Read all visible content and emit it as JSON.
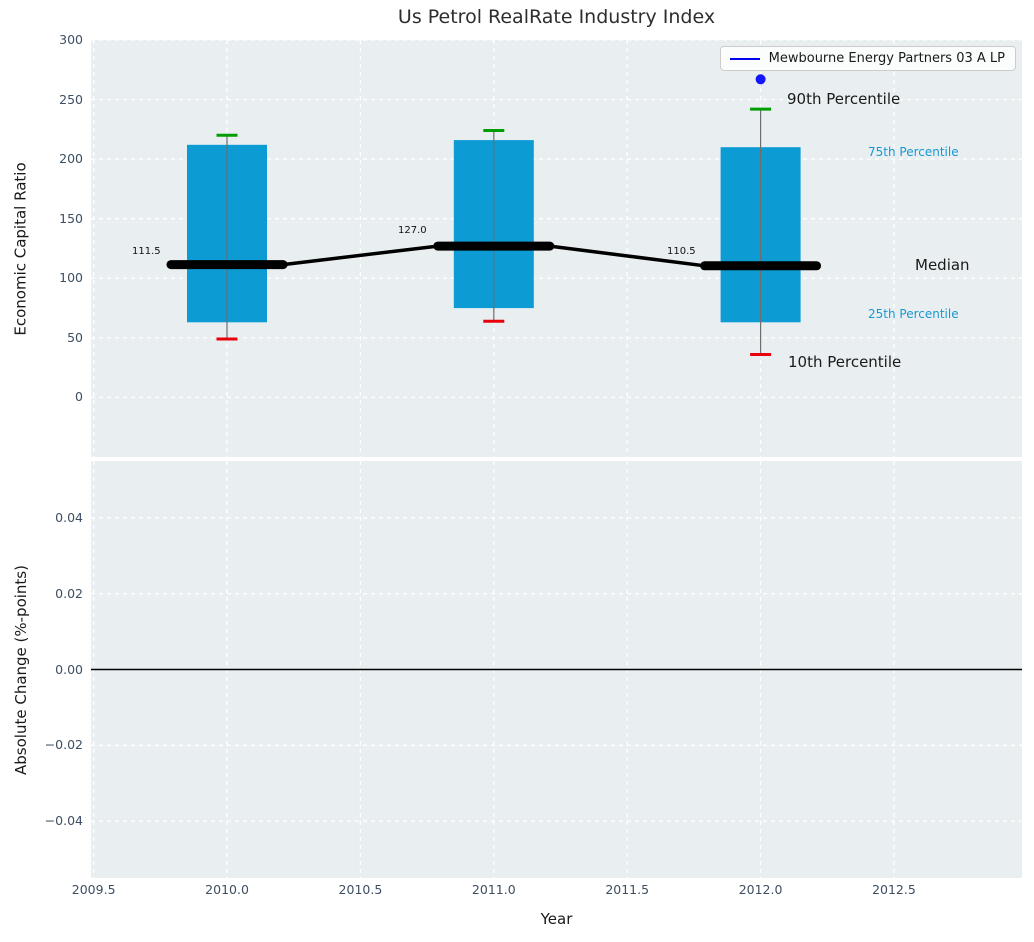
{
  "title": "Us Petrol RealRate Industry Index",
  "legend": {
    "label": "Mewbourne Energy Partners 03 A LP",
    "line_color": "#0000f0"
  },
  "colors": {
    "figure_bg": "#ffffff",
    "plot_bg": "#e9eef1",
    "grid": "#ffffff",
    "box_fill": "#0d9bd4",
    "whisker": "#6e6e6e",
    "cap_90th": "#009d00",
    "cap_10th": "#e8000b",
    "median_line": "#000000",
    "marker": "#1414ff",
    "zero_line": "#000000",
    "tick_label": "#3d4f63",
    "text": "#1a1a1a",
    "percentile_label_blue": "#179ad2"
  },
  "chart_data": {
    "type": "boxplot-timeseries",
    "title": "Us Petrol RealRate Industry Index",
    "xlabel": "Year",
    "xlim": [
      2009.49,
      2012.98
    ],
    "xticks": [
      2009.5,
      2010.0,
      2010.5,
      2011.0,
      2011.5,
      2012.0,
      2012.5
    ],
    "grid": "white dashed on gray background",
    "legend_position": "upper right",
    "top": {
      "ylabel": "Economic Capital Ratio",
      "ylim": [
        -50,
        300
      ],
      "yticks": [
        0,
        50,
        100,
        150,
        200,
        250,
        300
      ],
      "boxes": [
        {
          "year": 2010,
          "p10": 49,
          "p25": 63,
          "median": 111.5,
          "p75": 212,
          "p90": 220
        },
        {
          "year": 2011,
          "p10": 64,
          "p25": 75,
          "median": 127.0,
          "p75": 216,
          "p90": 224
        },
        {
          "year": 2012,
          "p10": 36,
          "p25": 63,
          "median": 110.5,
          "p75": 210,
          "p90": 242
        }
      ],
      "box_width_years": 0.3,
      "median_segment_width_years": 0.42,
      "marker": {
        "series": "Mewbourne Energy Partners 03 A LP",
        "x": 2012,
        "y": 267
      },
      "median_value_labels": [
        {
          "text": "111.5",
          "x": 41,
          "y": 213
        },
        {
          "text": "127.0",
          "x": 307,
          "y": 192
        },
        {
          "text": "110.5",
          "x": 576,
          "y": 213
        }
      ],
      "annotations": [
        {
          "text": "90th Percentile",
          "x": 696,
          "y": 60,
          "color": "#1a1a1a",
          "size": 15
        },
        {
          "text": "75th Percentile",
          "x": 777,
          "y": 113,
          "color": "#179ad2",
          "size": 12
        },
        {
          "text": "Median",
          "x": 824,
          "y": 226,
          "color": "#1a1a1a",
          "size": 15
        },
        {
          "text": "25th Percentile",
          "x": 777,
          "y": 275,
          "color": "#179ad2",
          "size": 12
        },
        {
          "text": "10th Percentile",
          "x": 697,
          "y": 323,
          "color": "#1a1a1a",
          "size": 15
        }
      ]
    },
    "bottom": {
      "ylabel": "Absolute Change (%-points)",
      "ylim": [
        -0.055,
        0.055
      ],
      "yticks": [
        -0.04,
        -0.02,
        0.0,
        0.02,
        0.04
      ],
      "zero_line": 0.0,
      "series": []
    }
  }
}
